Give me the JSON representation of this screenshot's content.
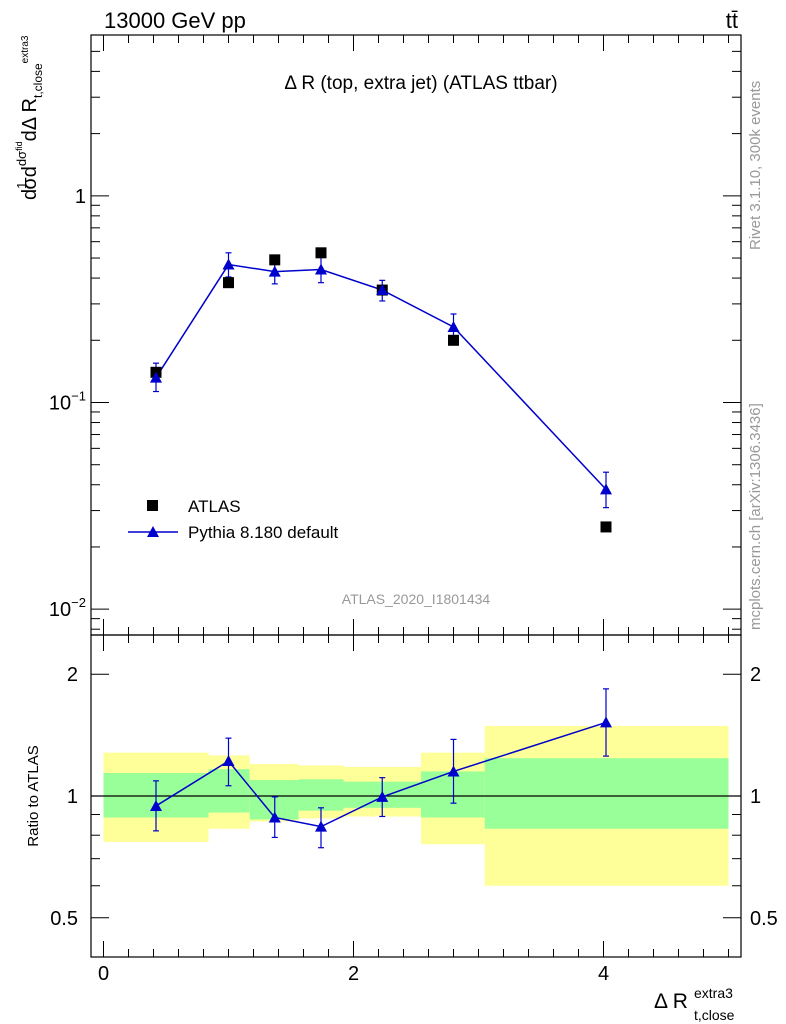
{
  "header": {
    "left": "13000 GeV pp",
    "right": "tt̄"
  },
  "side_labels": {
    "rivet": "Rivet 3.1.10,  300k events",
    "mcplots": "mcplots.cern.ch [arXiv:1306.3436]"
  },
  "colors": {
    "atlas_marker": "#000000",
    "mc_line": "#0000cc",
    "band_inner": "#99ff99",
    "band_outer": "#ffff99",
    "ratio_line": "#000000",
    "analysis_label": "#999999"
  },
  "chart_data": [
    {
      "type": "scatter",
      "panel": "main",
      "title": "Δ R (top, extra jet) (ATLAS ttbar)",
      "ylabel": "1/σ dσ^fid / dΔ R_t,close^extra3",
      "yscale": "log",
      "ylim": [
        0.0075,
        6.0
      ],
      "xlim": [
        -0.1,
        5.1
      ],
      "yticks": [
        {
          "value": 0.01,
          "label": "10^{-2}",
          "base": "10",
          "exp": "−2"
        },
        {
          "value": 0.1,
          "label": "10^{-1}",
          "base": "10",
          "exp": "−1"
        },
        {
          "value": 1,
          "label": "1",
          "base": "1",
          "exp": ""
        }
      ],
      "analysis_label": "ATLAS_2020_I1801434",
      "legend_position": "bottom-left",
      "series": [
        {
          "name": "ATLAS",
          "marker": "square",
          "points": [
            {
              "x": 0.42,
              "y": 0.14
            },
            {
              "x": 1.0,
              "y": 0.38
            },
            {
              "x": 1.37,
              "y": 0.49
            },
            {
              "x": 1.74,
              "y": 0.53
            },
            {
              "x": 2.23,
              "y": 0.35
            },
            {
              "x": 2.8,
              "y": 0.2
            },
            {
              "x": 4.02,
              "y": 0.025
            }
          ]
        },
        {
          "name": "Pythia 8.180 default",
          "marker": "triangle",
          "points": [
            {
              "x": 0.42,
              "y": 0.132,
              "ylo": 0.113,
              "yhi": 0.155
            },
            {
              "x": 1.0,
              "y": 0.465,
              "ylo": 0.405,
              "yhi": 0.53
            },
            {
              "x": 1.37,
              "y": 0.43,
              "ylo": 0.375,
              "yhi": 0.49
            },
            {
              "x": 1.74,
              "y": 0.44,
              "ylo": 0.38,
              "yhi": 0.505
            },
            {
              "x": 2.23,
              "y": 0.35,
              "ylo": 0.31,
              "yhi": 0.39
            },
            {
              "x": 2.8,
              "y": 0.232,
              "ylo": 0.2,
              "yhi": 0.268
            },
            {
              "x": 4.02,
              "y": 0.038,
              "ylo": 0.031,
              "yhi": 0.046
            }
          ]
        }
      ]
    },
    {
      "type": "scatter",
      "panel": "ratio",
      "ylabel": "Ratio to ATLAS",
      "xlabel": "Δ R_t,close^extra3",
      "yscale": "log",
      "ylim": [
        0.4,
        2.5
      ],
      "xlim": [
        -0.1,
        5.1
      ],
      "yticks": [
        {
          "value": 0.5,
          "label": "0.5"
        },
        {
          "value": 1,
          "label": "1"
        },
        {
          "value": 2,
          "label": "2"
        }
      ],
      "xticks": [
        {
          "value": 0,
          "label": "0"
        },
        {
          "value": 2,
          "label": "2"
        },
        {
          "value": 4,
          "label": "4"
        }
      ],
      "bands": [
        {
          "x0": 0.0,
          "x1": 0.84,
          "inner": [
            0.885,
            1.14
          ],
          "outer": [
            0.77,
            1.28
          ]
        },
        {
          "x0": 0.84,
          "x1": 1.17,
          "inner": [
            0.91,
            1.165
          ],
          "outer": [
            0.83,
            1.26
          ]
        },
        {
          "x0": 1.17,
          "x1": 1.56,
          "inner": [
            0.875,
            1.095
          ],
          "outer": [
            0.865,
            1.2
          ]
        },
        {
          "x0": 1.56,
          "x1": 1.92,
          "inner": [
            0.92,
            1.1
          ],
          "outer": [
            0.88,
            1.19
          ]
        },
        {
          "x0": 1.92,
          "x1": 2.54,
          "inner": [
            0.935,
            1.085
          ],
          "outer": [
            0.89,
            1.18
          ]
        },
        {
          "x0": 2.54,
          "x1": 3.05,
          "inner": [
            0.885,
            1.15
          ],
          "outer": [
            0.76,
            1.28
          ]
        },
        {
          "x0": 3.05,
          "x1": 5.0,
          "inner": [
            0.83,
            1.24
          ],
          "outer": [
            0.6,
            1.49
          ]
        }
      ],
      "series": [
        {
          "name": "Pythia 8.180 default",
          "marker": "triangle",
          "points": [
            {
              "x": 0.42,
              "y": 0.945,
              "ylo": 0.82,
              "yhi": 1.09
            },
            {
              "x": 1.0,
              "y": 1.22,
              "ylo": 1.06,
              "yhi": 1.39
            },
            {
              "x": 1.37,
              "y": 0.885,
              "ylo": 0.79,
              "yhi": 0.995
            },
            {
              "x": 1.74,
              "y": 0.84,
              "ylo": 0.745,
              "yhi": 0.935
            },
            {
              "x": 2.23,
              "y": 0.995,
              "ylo": 0.89,
              "yhi": 1.11
            },
            {
              "x": 2.8,
              "y": 1.15,
              "ylo": 0.96,
              "yhi": 1.38
            },
            {
              "x": 4.02,
              "y": 1.52,
              "ylo": 1.255,
              "yhi": 1.84
            }
          ]
        }
      ]
    }
  ]
}
